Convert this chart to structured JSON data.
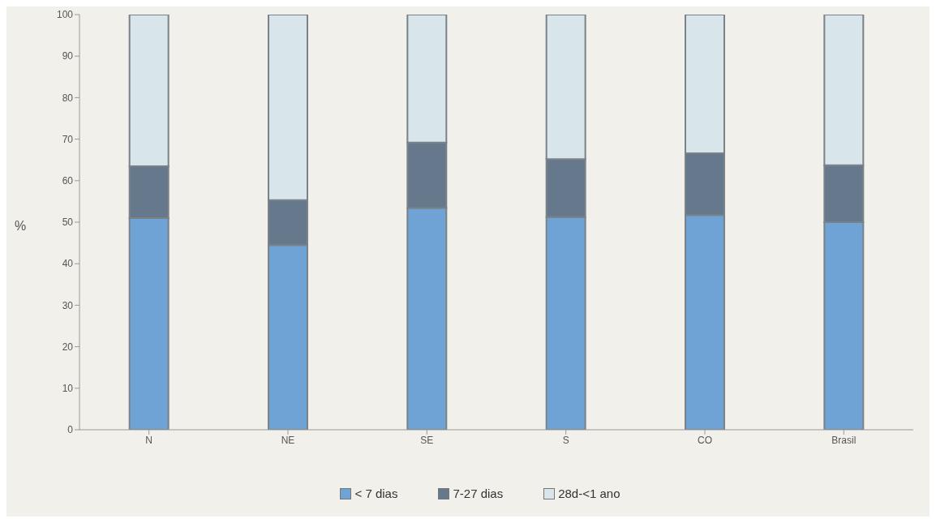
{
  "chart_data": {
    "type": "bar",
    "stacked": true,
    "ylabel": "%",
    "categories": [
      "N",
      "NE",
      "SE",
      "S",
      "CO",
      "Brasil"
    ],
    "series": [
      {
        "name": "< 7 dias",
        "color": "#6fa3d6",
        "values": [
          51,
          44.5,
          53.4,
          51.2,
          51.7,
          50
        ]
      },
      {
        "name": "7-27 dias",
        "color": "#66788c",
        "values": [
          12.5,
          10.8,
          15.8,
          14,
          14.9,
          13.7
        ]
      },
      {
        "name": "28d-<1 ano",
        "color": "#d8e6ec",
        "values": [
          36.5,
          44.7,
          30.8,
          34.8,
          33.4,
          36.3
        ]
      }
    ],
    "ylim": [
      0,
      100
    ],
    "yticks": [
      0,
      10,
      20,
      30,
      40,
      50,
      60,
      70,
      80,
      90,
      100
    ],
    "grid": false,
    "legend": "bottom"
  }
}
